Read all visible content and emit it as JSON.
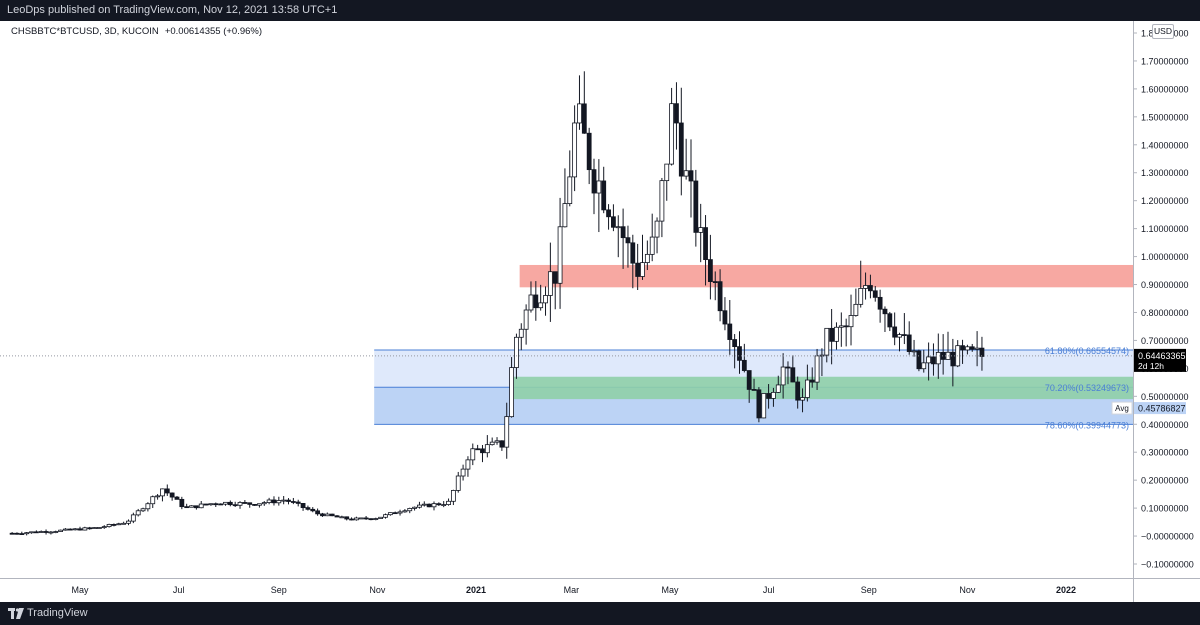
{
  "header": {
    "publish_line": "LeoDps published on TradingView.com, Nov 12, 2021 13:58 UTC+1"
  },
  "legend": {
    "symbol": "CHSBBTC*BTCUSD, 3D, KUCOIN",
    "change": "+0.00614355 (+0.96%)"
  },
  "currency_button": "USD",
  "footer": {
    "brand": "TradingView"
  },
  "colors": {
    "candle": "#131722",
    "resistance_zone": "#f7a8a2",
    "fib_zone_light": "#dfe9fb",
    "fib_zone_dark": "#bcd3f5",
    "fib_line": "#4a7fd6",
    "support_zone": "#8fcfa8",
    "price_label_bg": "#000000"
  },
  "chart_data": {
    "type": "candlestick",
    "interval": "3D",
    "x_tick_labels": [
      "May",
      "Jul",
      "Sep",
      "Nov",
      "2021",
      "Mar",
      "May",
      "Jul",
      "Sep",
      "Nov",
      "2022"
    ],
    "y_tick_labels": [
      "1.80000000",
      "1.70000000",
      "1.60000000",
      "1.50000000",
      "1.40000000",
      "1.30000000",
      "1.20000000",
      "1.10000000",
      "1.00000000",
      "0.90000000",
      "0.80000000",
      "0.70000000",
      "0.60000000",
      "0.50000000",
      "0.40000000",
      "0.30000000",
      "0.20000000",
      "0.10000000",
      "−0.00000000",
      "−0.10000000"
    ],
    "ylim": [
      -0.12,
      1.81
    ],
    "grid": false,
    "current_price": {
      "value": "0.64463365",
      "countdown": "2d 12h"
    },
    "avg_label": {
      "label": "Avg",
      "value": "0.45786827"
    },
    "fib_levels": [
      {
        "label": "61.80%(0.66554574)",
        "value": 0.66554574
      },
      {
        "label": "70.20%(0.53249673)",
        "value": 0.53249673
      },
      {
        "label": "78.60%(0.39944773)",
        "value": 0.39944773
      }
    ],
    "zones": [
      {
        "name": "resistance",
        "from": 0.89,
        "to": 0.97,
        "start": "2021-01-28"
      },
      {
        "name": "support",
        "from": 0.49,
        "to": 0.57,
        "start": "2021-01-22"
      }
    ],
    "fib_box_start": "2020-10-30",
    "anchors": [
      [
        "2020-03-20",
        0.01
      ],
      [
        "2020-04-20",
        0.02
      ],
      [
        "2020-05-12",
        0.03
      ],
      [
        "2020-05-30",
        0.05
      ],
      [
        "2020-06-12",
        0.12
      ],
      [
        "2020-06-21",
        0.17
      ],
      [
        "2020-07-05",
        0.1
      ],
      [
        "2020-07-25",
        0.12
      ],
      [
        "2020-08-15",
        0.115
      ],
      [
        "2020-09-05",
        0.13
      ],
      [
        "2020-09-25",
        0.08
      ],
      [
        "2020-10-15",
        0.06
      ],
      [
        "2020-11-01",
        0.065
      ],
      [
        "2020-11-20",
        0.1
      ],
      [
        "2020-12-15",
        0.12
      ],
      [
        "2020-12-28",
        0.3
      ],
      [
        "2021-01-10",
        0.32
      ],
      [
        "2021-01-18",
        0.33
      ],
      [
        "2021-01-25",
        0.7
      ],
      [
        "2021-02-05",
        0.86
      ],
      [
        "2021-02-20",
        0.95
      ],
      [
        "2021-03-04",
        1.5
      ],
      [
        "2021-03-15",
        1.3
      ],
      [
        "2021-03-28",
        1.15
      ],
      [
        "2021-04-10",
        0.95
      ],
      [
        "2021-04-22",
        1.05
      ],
      [
        "2021-05-03",
        1.55
      ],
      [
        "2021-05-10",
        1.3
      ],
      [
        "2021-05-20",
        1.05
      ],
      [
        "2021-06-01",
        0.85
      ],
      [
        "2021-06-10",
        0.7
      ],
      [
        "2021-06-25",
        0.45
      ],
      [
        "2021-07-10",
        0.6
      ],
      [
        "2021-07-22",
        0.48
      ],
      [
        "2021-08-05",
        0.7
      ],
      [
        "2021-08-20",
        0.75
      ],
      [
        "2021-09-01",
        0.93
      ],
      [
        "2021-09-12",
        0.8
      ],
      [
        "2021-09-22",
        0.7
      ],
      [
        "2021-10-02",
        0.6
      ],
      [
        "2021-10-15",
        0.64
      ],
      [
        "2021-11-10",
        0.645
      ]
    ]
  }
}
